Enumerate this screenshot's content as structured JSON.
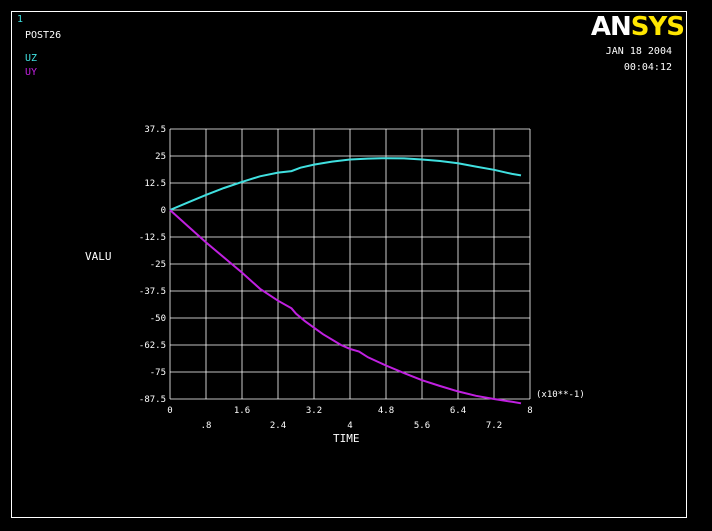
{
  "window": {
    "number": "1",
    "title": "POST26",
    "date": "JAN 18 2004",
    "time": "00:04:12",
    "logo_white": "AN",
    "logo_yellow": "SYS"
  },
  "legend": [
    {
      "label": "UZ",
      "color": "#40e0e0"
    },
    {
      "label": "UY",
      "color": "#c020e0"
    }
  ],
  "chart_data": {
    "type": "line",
    "title": "",
    "xlabel": "TIME",
    "ylabel": "VALU",
    "x_multiplier": "(x10**-1)",
    "xlim": [
      0,
      8
    ],
    "ylim": [
      -87.5,
      37.5
    ],
    "x_ticks_bottom": [
      "0",
      "1.6",
      "3.2",
      "4.8",
      "6.4",
      "8"
    ],
    "x_ticks_top": [
      ".8",
      "2.4",
      "4",
      "5.6",
      "7.2"
    ],
    "y_ticks": [
      "37.5",
      "25",
      "12.5",
      "0",
      "-12.5",
      "-25",
      "-37.5",
      "-50",
      "-62.5",
      "-75",
      "-87.5"
    ],
    "grid": true,
    "series": [
      {
        "name": "UZ",
        "color": "#40e0e0",
        "x": [
          0,
          0.4,
          0.8,
          1.2,
          1.6,
          2.0,
          2.4,
          2.7,
          2.9,
          3.2,
          3.6,
          4.0,
          4.4,
          4.8,
          5.2,
          5.6,
          6.0,
          6.4,
          6.8,
          7.2,
          7.6,
          7.8
        ],
        "y": [
          0,
          3.5,
          7,
          10.2,
          13,
          15.6,
          17.3,
          18,
          19.6,
          21,
          22.4,
          23.4,
          23.8,
          24,
          23.9,
          23.4,
          22.7,
          21.6,
          20.1,
          18.6,
          16.7,
          16
        ]
      },
      {
        "name": "UY",
        "color": "#c020e0",
        "x": [
          0,
          0.4,
          0.8,
          1.2,
          1.6,
          2.0,
          2.4,
          2.7,
          2.8,
          3.0,
          3.4,
          3.8,
          4.0,
          4.2,
          4.4,
          4.8,
          5.2,
          5.6,
          6.0,
          6.4,
          6.8,
          7.2,
          7.6,
          7.8
        ],
        "y": [
          0,
          -7.5,
          -15,
          -22,
          -29,
          -36.5,
          -42,
          -45.5,
          -48,
          -51.5,
          -57.5,
          -62.5,
          -64.3,
          -65.5,
          -68.2,
          -72,
          -75.5,
          -78.8,
          -81.5,
          -84,
          -86,
          -87.5,
          -88.8,
          -89.5
        ]
      }
    ]
  }
}
